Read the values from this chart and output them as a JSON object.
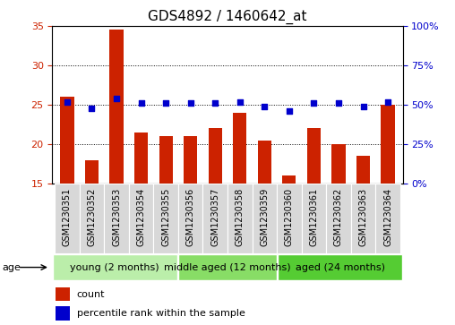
{
  "title": "GDS4892 / 1460642_at",
  "samples": [
    "GSM1230351",
    "GSM1230352",
    "GSM1230353",
    "GSM1230354",
    "GSM1230355",
    "GSM1230356",
    "GSM1230357",
    "GSM1230358",
    "GSM1230359",
    "GSM1230360",
    "GSM1230361",
    "GSM1230362",
    "GSM1230363",
    "GSM1230364"
  ],
  "counts": [
    26.0,
    18.0,
    34.5,
    21.5,
    21.0,
    21.0,
    22.0,
    24.0,
    20.5,
    16.0,
    22.0,
    20.0,
    18.5,
    25.0
  ],
  "percentiles": [
    52,
    48,
    54,
    51,
    51,
    51,
    51,
    52,
    49,
    46,
    51,
    51,
    49,
    52
  ],
  "ylim_left": [
    15,
    35
  ],
  "ylim_right": [
    0,
    100
  ],
  "yticks_left": [
    15,
    20,
    25,
    30,
    35
  ],
  "yticks_right": [
    0,
    25,
    50,
    75,
    100
  ],
  "bar_color": "#cc2200",
  "dot_color": "#0000cc",
  "grid_color": "#000000",
  "bg_color": "#ffffff",
  "groups": [
    {
      "label": "young (2 months)",
      "start": 0,
      "end": 5,
      "color": "#bbeeaa"
    },
    {
      "label": "middle aged (12 months)",
      "start": 5,
      "end": 9,
      "color": "#88dd66"
    },
    {
      "label": "aged (24 months)",
      "start": 9,
      "end": 14,
      "color": "#55cc33"
    }
  ],
  "legend_count_label": "count",
  "legend_pct_label": "percentile rank within the sample",
  "age_label": "age",
  "title_fontsize": 11,
  "axis_fontsize": 8,
  "tick_label_fontsize": 7,
  "group_fontsize": 8,
  "legend_fontsize": 8
}
